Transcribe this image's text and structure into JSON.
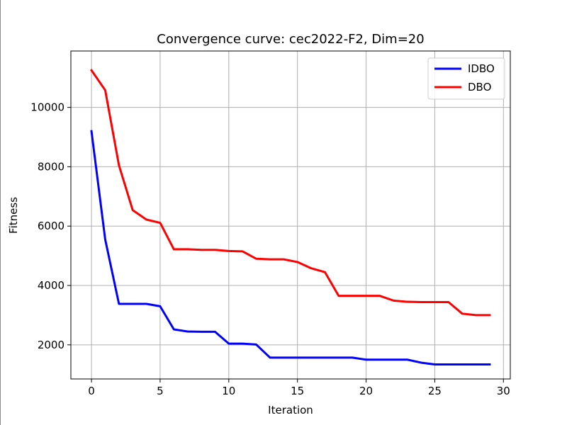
{
  "chart_data": {
    "type": "line",
    "title": "Convergence curve:  cec2022-F2, Dim=20",
    "xlabel": "Iteration",
    "ylabel": "Fitness",
    "xlim": [
      -1.5,
      30.5
    ],
    "ylim": [
      850,
      11900
    ],
    "xticks": [
      0,
      5,
      10,
      15,
      20,
      25,
      30
    ],
    "yticks": [
      2000,
      4000,
      6000,
      8000,
      10000
    ],
    "grid": true,
    "legend_position": "top-right",
    "x": [
      0,
      1,
      2,
      3,
      4,
      5,
      6,
      7,
      8,
      9,
      10,
      11,
      12,
      13,
      14,
      15,
      16,
      17,
      18,
      19,
      20,
      21,
      22,
      23,
      24,
      25,
      26,
      27,
      28,
      29
    ],
    "series": [
      {
        "name": "IDBO",
        "color": "#0000ff",
        "values": [
          9200,
          5550,
          3380,
          3380,
          3380,
          3300,
          2520,
          2450,
          2440,
          2440,
          2040,
          2040,
          2010,
          1570,
          1570,
          1570,
          1570,
          1570,
          1570,
          1570,
          1500,
          1500,
          1500,
          1500,
          1400,
          1340,
          1340,
          1340,
          1340,
          1340
        ]
      },
      {
        "name": "DBO",
        "color": "#ff0000",
        "values": [
          11250,
          10580,
          8050,
          6540,
          6220,
          6110,
          5220,
          5220,
          5200,
          5200,
          5160,
          5150,
          4900,
          4880,
          4880,
          4790,
          4580,
          4450,
          3650,
          3650,
          3650,
          3650,
          3490,
          3450,
          3440,
          3440,
          3440,
          3050,
          3000,
          3000
        ]
      }
    ]
  }
}
